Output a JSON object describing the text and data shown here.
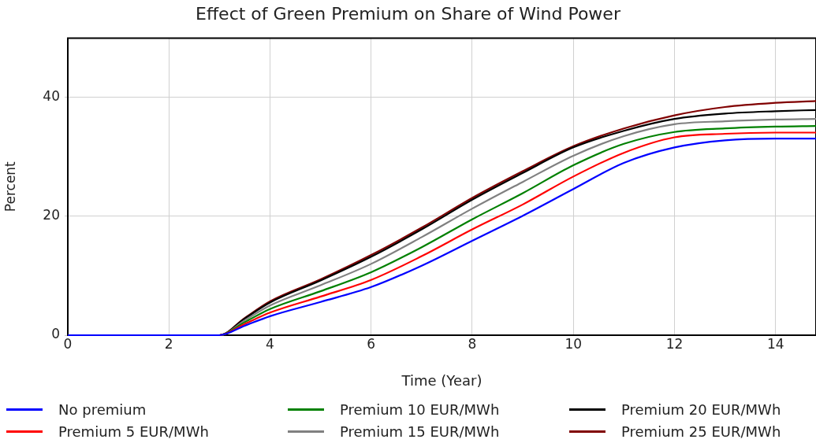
{
  "chart_data": {
    "type": "line",
    "title": "Effect of Green Premium on Share of Wind Power",
    "xlabel": "Time (Year)",
    "ylabel": "Percent",
    "x": [
      0,
      3,
      3.5,
      4,
      5,
      6,
      7,
      8,
      9,
      10,
      11,
      12,
      13,
      14,
      14.8
    ],
    "xlim": [
      0,
      14.8
    ],
    "xticks": [
      0,
      2,
      4,
      6,
      8,
      10,
      12,
      14
    ],
    "ylim": [
      0,
      50
    ],
    "yticks": [
      0,
      20,
      40
    ],
    "grid": true,
    "legend": "bottom",
    "marker": "none",
    "line_style": "solid",
    "series": [
      {
        "name": "No premium",
        "color": "#0000ff",
        "values": [
          0,
          0,
          1.6,
          3.2,
          5.6,
          8.1,
          11.7,
          15.9,
          20.1,
          24.6,
          29.0,
          31.6,
          32.8,
          33.1,
          33.1
        ]
      },
      {
        "name": "Premium 5 EUR/MWh",
        "color": "#ff0000",
        "values": [
          0,
          0,
          1.9,
          3.8,
          6.5,
          9.3,
          13.3,
          17.8,
          22.0,
          26.7,
          30.7,
          33.3,
          33.9,
          34.1,
          34.1
        ]
      },
      {
        "name": "Premium 10 EUR/MWh",
        "color": "#008000",
        "values": [
          0,
          0,
          2.2,
          4.4,
          7.4,
          10.6,
          14.8,
          19.5,
          23.9,
          28.6,
          32.2,
          34.2,
          34.8,
          35.1,
          35.2
        ]
      },
      {
        "name": "Premium 15 EUR/MWh",
        "color": "#808080",
        "values": [
          0,
          0,
          2.5,
          5.0,
          8.4,
          12.0,
          16.5,
          21.3,
          25.8,
          30.2,
          33.5,
          35.5,
          36.0,
          36.3,
          36.4
        ]
      },
      {
        "name": "Premium 20 EUR/MWh",
        "color": "#000000",
        "values": [
          0,
          0,
          2.8,
          5.5,
          9.2,
          13.2,
          17.8,
          22.8,
          27.3,
          31.6,
          34.4,
          36.4,
          37.3,
          37.7,
          37.9
        ]
      },
      {
        "name": "Premium 25 EUR/MWh",
        "color": "#800000",
        "values": [
          0,
          0,
          2.9,
          5.7,
          9.4,
          13.5,
          18.1,
          23.1,
          27.6,
          31.8,
          34.8,
          37.0,
          38.4,
          39.1,
          39.4
        ]
      }
    ]
  }
}
